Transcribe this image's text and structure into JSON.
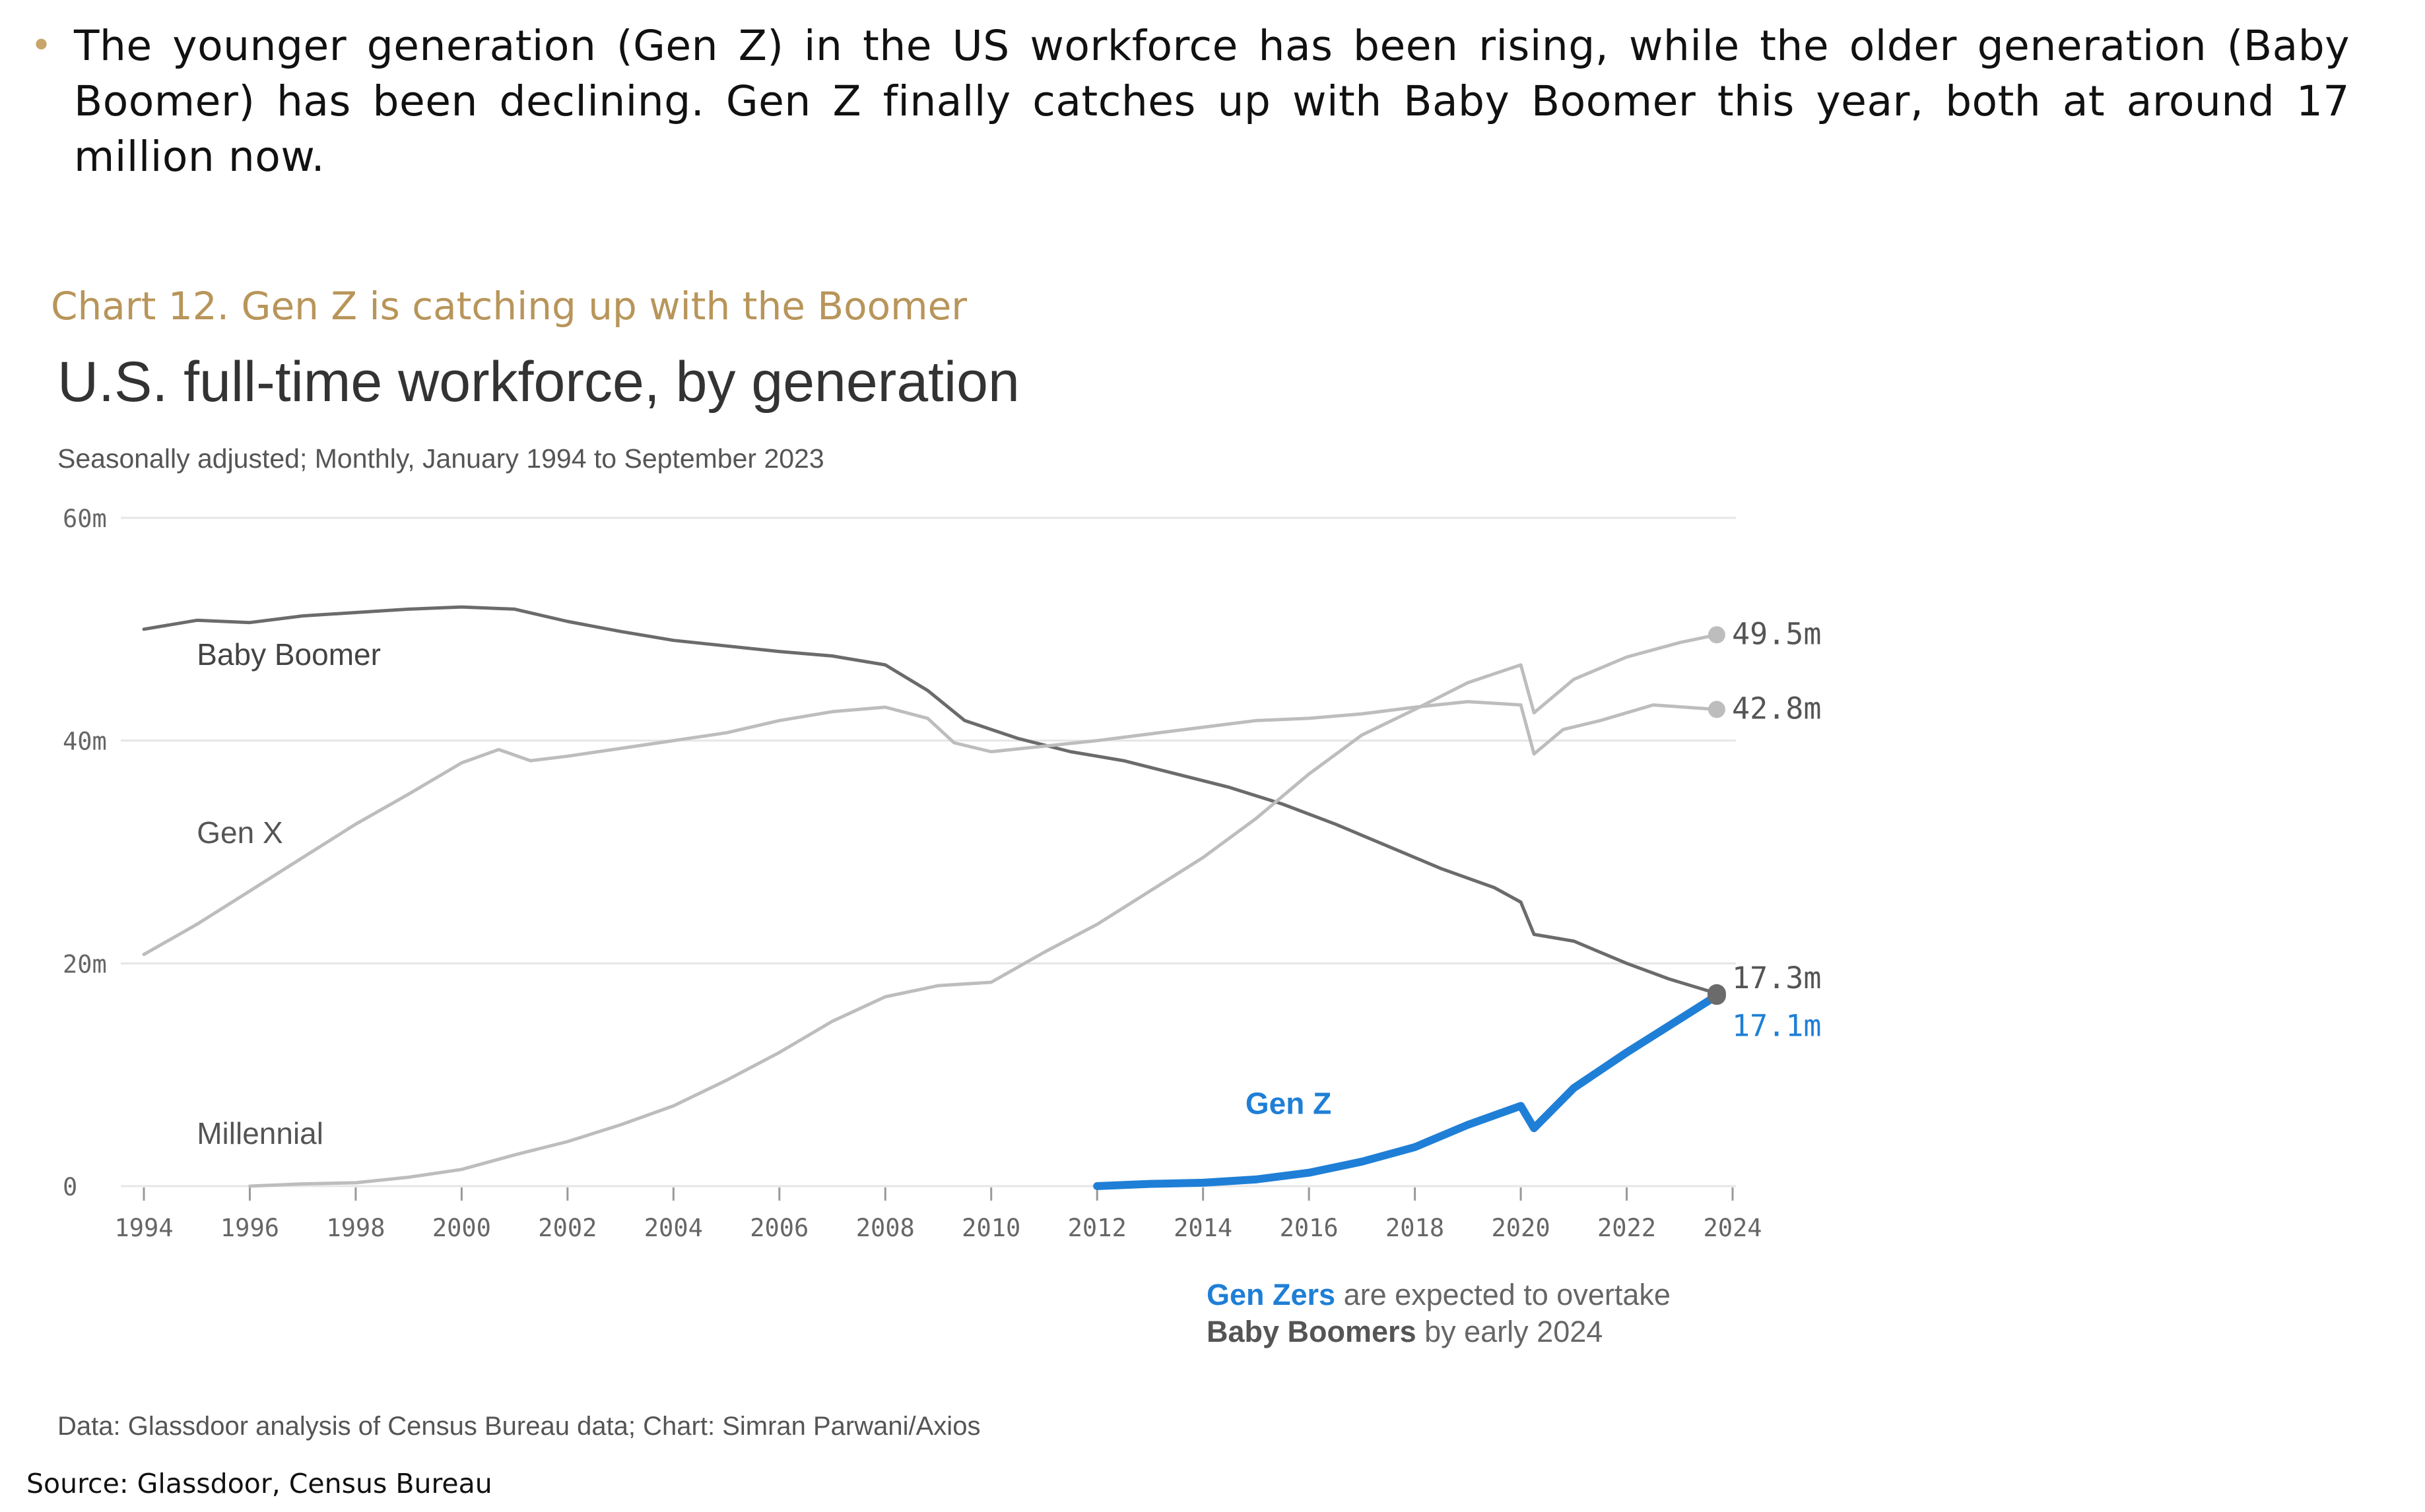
{
  "bullet": {
    "text": "The younger generation (Gen Z) in the US workforce has been rising, while the older generation (Baby Boomer) has been declining. Gen Z finally catches up with Baby Boomer this year, both at around 17 million now."
  },
  "caption": "Chart 12. Gen Z is catching up with the Boomer",
  "chart_data": {
    "type": "line",
    "title": "U.S. full-time workforce, by generation",
    "subtitle": "Seasonally adjusted; Monthly, January 1994 to September 2023",
    "xlabel": "",
    "ylabel": "",
    "xlim": [
      1994,
      2024
    ],
    "ylim": [
      0,
      60
    ],
    "x_ticks": [
      "1994",
      "1996",
      "1998",
      "2000",
      "2002",
      "2004",
      "2006",
      "2008",
      "2010",
      "2012",
      "2014",
      "2016",
      "2018",
      "2020",
      "2022",
      "2024"
    ],
    "y_ticks": [
      {
        "value": 0,
        "label": "0"
      },
      {
        "value": 20,
        "label": "20m"
      },
      {
        "value": 40,
        "label": "40m"
      },
      {
        "value": 60,
        "label": "60m"
      }
    ],
    "grid": true,
    "series": [
      {
        "name": "Baby Boomer",
        "color": "#6B6B6B",
        "end_label": "17.3m",
        "points": [
          [
            1994.0,
            50.0
          ],
          [
            1995.0,
            50.8
          ],
          [
            1996.0,
            50.6
          ],
          [
            1997.0,
            51.2
          ],
          [
            1998.0,
            51.5
          ],
          [
            1999.0,
            51.8
          ],
          [
            2000.0,
            52.0
          ],
          [
            2001.0,
            51.8
          ],
          [
            2002.0,
            50.7
          ],
          [
            2003.0,
            49.8
          ],
          [
            2004.0,
            49.0
          ],
          [
            2005.0,
            48.5
          ],
          [
            2006.0,
            48.0
          ],
          [
            2007.0,
            47.6
          ],
          [
            2008.0,
            46.8
          ],
          [
            2008.8,
            44.5
          ],
          [
            2009.5,
            41.8
          ],
          [
            2010.5,
            40.2
          ],
          [
            2011.5,
            39.0
          ],
          [
            2012.5,
            38.2
          ],
          [
            2013.5,
            37.0
          ],
          [
            2014.5,
            35.8
          ],
          [
            2015.5,
            34.3
          ],
          [
            2016.5,
            32.5
          ],
          [
            2017.5,
            30.5
          ],
          [
            2018.5,
            28.5
          ],
          [
            2019.5,
            26.8
          ],
          [
            2020.0,
            25.5
          ],
          [
            2020.25,
            22.6
          ],
          [
            2021.0,
            22.0
          ],
          [
            2022.0,
            20.0
          ],
          [
            2022.8,
            18.6
          ],
          [
            2023.7,
            17.3
          ]
        ]
      },
      {
        "name": "Gen X",
        "color": "#BDBDBD",
        "end_label": "42.8m",
        "points": [
          [
            1994.0,
            20.8
          ],
          [
            1995.0,
            23.5
          ],
          [
            1996.0,
            26.5
          ],
          [
            1997.0,
            29.5
          ],
          [
            1998.0,
            32.5
          ],
          [
            1999.0,
            35.2
          ],
          [
            2000.0,
            38.0
          ],
          [
            2000.7,
            39.2
          ],
          [
            2001.3,
            38.2
          ],
          [
            2002.0,
            38.6
          ],
          [
            2003.0,
            39.3
          ],
          [
            2004.0,
            40.0
          ],
          [
            2005.0,
            40.7
          ],
          [
            2006.0,
            41.8
          ],
          [
            2007.0,
            42.6
          ],
          [
            2008.0,
            43.0
          ],
          [
            2008.8,
            42.0
          ],
          [
            2009.3,
            39.8
          ],
          [
            2010.0,
            39.0
          ],
          [
            2011.0,
            39.5
          ],
          [
            2012.0,
            40.0
          ],
          [
            2013.0,
            40.6
          ],
          [
            2014.0,
            41.2
          ],
          [
            2015.0,
            41.8
          ],
          [
            2016.0,
            42.0
          ],
          [
            2017.0,
            42.4
          ],
          [
            2018.0,
            43.0
          ],
          [
            2019.0,
            43.5
          ],
          [
            2020.0,
            43.2
          ],
          [
            2020.25,
            38.8
          ],
          [
            2020.8,
            41.0
          ],
          [
            2021.5,
            41.8
          ],
          [
            2022.5,
            43.2
          ],
          [
            2023.7,
            42.8
          ]
        ]
      },
      {
        "name": "Millennial",
        "color": "#BDBDBD",
        "end_label": "49.5m",
        "points": [
          [
            1996.0,
            0.0
          ],
          [
            1997.0,
            0.2
          ],
          [
            1998.0,
            0.3
          ],
          [
            1999.0,
            0.8
          ],
          [
            2000.0,
            1.5
          ],
          [
            2001.0,
            2.8
          ],
          [
            2002.0,
            4.0
          ],
          [
            2003.0,
            5.5
          ],
          [
            2004.0,
            7.2
          ],
          [
            2005.0,
            9.5
          ],
          [
            2006.0,
            12.0
          ],
          [
            2007.0,
            14.8
          ],
          [
            2008.0,
            17.0
          ],
          [
            2009.0,
            18.0
          ],
          [
            2010.0,
            18.3
          ],
          [
            2011.0,
            21.0
          ],
          [
            2012.0,
            23.5
          ],
          [
            2013.0,
            26.5
          ],
          [
            2014.0,
            29.5
          ],
          [
            2015.0,
            33.0
          ],
          [
            2016.0,
            37.0
          ],
          [
            2017.0,
            40.5
          ],
          [
            2018.0,
            42.8
          ],
          [
            2019.0,
            45.2
          ],
          [
            2020.0,
            46.8
          ],
          [
            2020.25,
            42.5
          ],
          [
            2021.0,
            45.5
          ],
          [
            2022.0,
            47.5
          ],
          [
            2023.0,
            48.8
          ],
          [
            2023.7,
            49.5
          ]
        ]
      },
      {
        "name": "Gen Z",
        "color": "#1F7FD6",
        "end_label": "17.1m",
        "points": [
          [
            2012.0,
            0.0
          ],
          [
            2013.0,
            0.2
          ],
          [
            2014.0,
            0.3
          ],
          [
            2015.0,
            0.6
          ],
          [
            2016.0,
            1.2
          ],
          [
            2017.0,
            2.2
          ],
          [
            2018.0,
            3.5
          ],
          [
            2019.0,
            5.5
          ],
          [
            2020.0,
            7.2
          ],
          [
            2020.25,
            5.2
          ],
          [
            2021.0,
            8.8
          ],
          [
            2022.0,
            12.0
          ],
          [
            2023.0,
            15.0
          ],
          [
            2023.7,
            17.1
          ]
        ]
      }
    ],
    "annotations": {
      "note": {
        "highlight": "Gen Zers",
        "text1": " are expected to overtake",
        "bold2": "Baby Boomers",
        "text2": " by early 2024"
      },
      "credit": "Data: Glassdoor analysis of Census Bureau data; Chart: Simran Parwani/Axios"
    }
  },
  "source": "Source: Glassdoor, Census Bureau"
}
